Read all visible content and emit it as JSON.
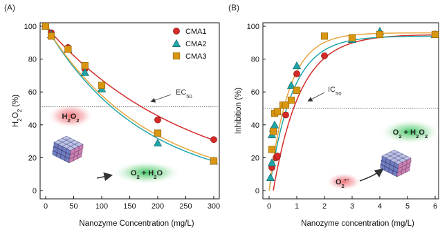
{
  "colors": {
    "cma1": "#d42a27",
    "cma2": "#1fa5a8",
    "cma3": "#d99611",
    "cma3_line": "#e7a53b",
    "threshold": "#777777",
    "glow_red": "#ef6b70",
    "glow_green": "#35c25b"
  },
  "chart_data": [
    {
      "type": "scatter",
      "panel_label": "(A)",
      "xlabel": "Nanozyme Concentration (mg/L)",
      "ylabel": "H2O2 (%)",
      "ylabel_parts": {
        "pre": "H",
        "sub1": "2",
        "mid": "O",
        "sub2": "2",
        "post": " (%)"
      },
      "xlim": [
        0,
        300
      ],
      "ylim": [
        0,
        100
      ],
      "xticks": [
        0,
        50,
        100,
        150,
        200,
        250,
        300
      ],
      "yticks": [
        0,
        20,
        40,
        60,
        80,
        100
      ],
      "grid": false,
      "legend_position": "top-right",
      "threshold": {
        "y": 51,
        "label_main": "EC",
        "label_sub": "50"
      },
      "annotations": [
        {
          "text_parts": {
            "pre": "H",
            "sub1": "2",
            "mid": "O",
            "sub2": "2"
          },
          "glow": "red"
        },
        {
          "text_parts": {
            "pre": "O",
            "sub1": "2",
            "mid": " + H",
            "sub2": "2",
            "post": "O"
          },
          "glow": "green"
        }
      ],
      "series": [
        {
          "name": "CMA1",
          "marker": "circle",
          "x": [
            0,
            10,
            40,
            70,
            100,
            200,
            300
          ],
          "y": [
            100,
            96,
            87,
            74,
            64,
            43,
            31
          ],
          "fit": {
            "type": "exp",
            "a": 100,
            "b": 0.00394
          }
        },
        {
          "name": "CMA2",
          "marker": "triangle",
          "x": [
            0,
            10,
            40,
            70,
            100,
            200,
            300
          ],
          "y": [
            100,
            95,
            86,
            72,
            62,
            29,
            18
          ],
          "fit": {
            "type": "exp",
            "a": 100,
            "b": 0.00574
          }
        },
        {
          "name": "CMA3",
          "marker": "square",
          "x": [
            0,
            10,
            40,
            70,
            100,
            200,
            300
          ],
          "y": [
            100,
            94,
            86,
            76,
            64,
            35,
            18
          ],
          "fit": {
            "type": "exp",
            "a": 100,
            "b": 0.00546
          }
        }
      ]
    },
    {
      "type": "scatter",
      "panel_label": "(B)",
      "xlabel": "Nanozyme concentration (mg/L)",
      "ylabel": "Inhibition (%)",
      "xlim": [
        0,
        6
      ],
      "ylim": [
        0,
        100
      ],
      "xticks": [
        0,
        1,
        2,
        3,
        4,
        5,
        6
      ],
      "yticks": [
        0,
        20,
        40,
        60,
        80,
        100
      ],
      "grid": false,
      "threshold": {
        "y": 50,
        "label_main": "IC",
        "label_sub": "50"
      },
      "annotations": [
        {
          "text_parts": {
            "pre": "O",
            "sub1": "2",
            "mid": " + H",
            "sub2": "2",
            "post": "O",
            "sub3": "2"
          },
          "glow": "green"
        },
        {
          "text_parts": {
            "pre": "O",
            "sub1": "2",
            "sup": "•−"
          },
          "glow": "red"
        }
      ],
      "series": [
        {
          "name": "CMA1",
          "marker": "circle",
          "x": [
            0.1,
            0.25,
            0.3,
            0.6,
            1.0,
            2.0,
            3.0,
            4.0,
            6.0
          ],
          "y": [
            14,
            20,
            21,
            46,
            71,
            82,
            93,
            95,
            95
          ],
          "fit": {
            "type": "sat",
            "x0": 0.15,
            "ymax": 95,
            "k": 1.02
          }
        },
        {
          "name": "CMA2",
          "marker": "triangle",
          "x": [
            0.05,
            0.1,
            0.1,
            0.15,
            0.2,
            0.3,
            0.8,
            1.0,
            3.0,
            4.0,
            6.0
          ],
          "y": [
            8,
            17,
            34,
            38,
            40,
            48,
            64,
            76,
            92,
            97,
            95
          ],
          "fit": {
            "type": "sat",
            "x0": 0.0,
            "ymax": 94,
            "k": 1.2
          }
        },
        {
          "name": "CMA3",
          "marker": "square",
          "x": [
            0.1,
            0.15,
            0.2,
            0.3,
            0.5,
            0.6,
            0.8,
            1.0,
            2.0,
            3.0,
            4.0,
            6.0
          ],
          "y": [
            25,
            36,
            47,
            48,
            52,
            52,
            55,
            61,
            94,
            93,
            95,
            95
          ],
          "fit": {
            "type": "sat",
            "x0": 0.0,
            "ymax": 96,
            "k": 1.4
          }
        }
      ]
    }
  ]
}
